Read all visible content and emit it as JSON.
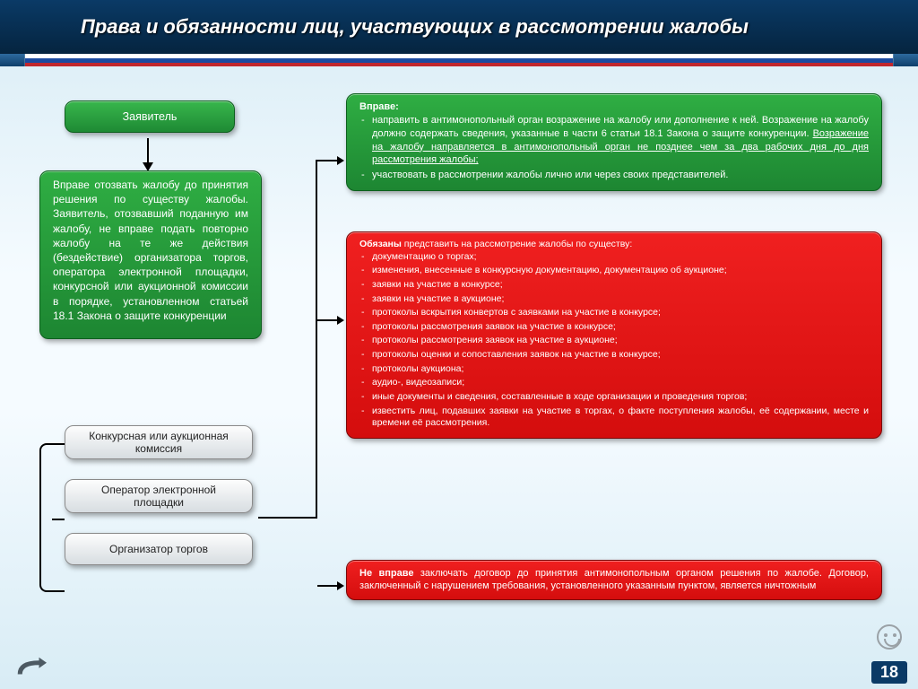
{
  "slide": {
    "title": "Права и обязанности лиц, участвующих в рассмотрении жалобы",
    "page_number": "18"
  },
  "left": {
    "applicant_label": "Заявитель",
    "applicant_text": "Вправе отозвать жалобу до принятия решения по существу жалобы. Заявитель, отозвавший поданную им жалобу, не вправе подать повторно жалобу на те же действия (бездействие) организатора торгов, оператора электронной площадки, конкурсной или аукционной комиссии в порядке, установленном статьей 18.1 Закона о защите конкуренции",
    "commission_label": "Конкурсная или аукционная комиссия",
    "operator_label": "Оператор электронной площадки",
    "organizer_label": "Организатор торгов"
  },
  "right": {
    "vprave_head": "Вправе:",
    "vprave_item1a": "направить в антимонопольный орган возражение на жалобу или дополнение к ней. Возражение на жалобу должно содержать сведения, указанные в части 6 статьи 18.1 Закона о защите конкуренции. ",
    "vprave_item1b": "Возражение на жалобу направляется в антимонопольный орган не позднее чем за два рабочих дня до дня рассмотрения жалобы;",
    "vprave_item2": "участвовать в рассмотрении жалобы лично или через своих представителей.",
    "obyaz_head": "Обязаны",
    "obyaz_lead": " представить на рассмотрение жалобы по существу:",
    "obyaz_items": [
      "документацию о торгах;",
      "изменения, внесенные в конкурсную документацию, документацию об аукционе;",
      "заявки на участие в конкурсе;",
      "заявки на участие в аукционе;",
      "протоколы вскрытия конвертов с заявками на участие в конкурсе;",
      "протоколы рассмотрения заявок на участие в конкурсе;",
      "протоколы рассмотрения заявок на участие в аукционе;",
      "протоколы оценки и сопоставления заявок на участие в конкурсе;",
      "протоколы аукциона;",
      "аудио-, видеозаписи;",
      "иные документы и сведения, составленные в ходе организации и проведения торгов;",
      "известить лиц, подавших заявки на участие в торгах, о факте поступления жалобы, её содержании, месте и времени её рассмотрения."
    ],
    "nevprave_head": "Не вправе",
    "nevprave_text": " заключать договор до принятия антимонопольным органом решения по жалобе. Договор, заключенный с нарушением требования, установленного указанным пунктом, является ничтожным"
  },
  "colors": {
    "green1": "#2fae43",
    "green2": "#1d8632",
    "red1": "#f02020",
    "red2": "#d40d0d",
    "header1": "#0a3a66",
    "header2": "#05243f"
  }
}
